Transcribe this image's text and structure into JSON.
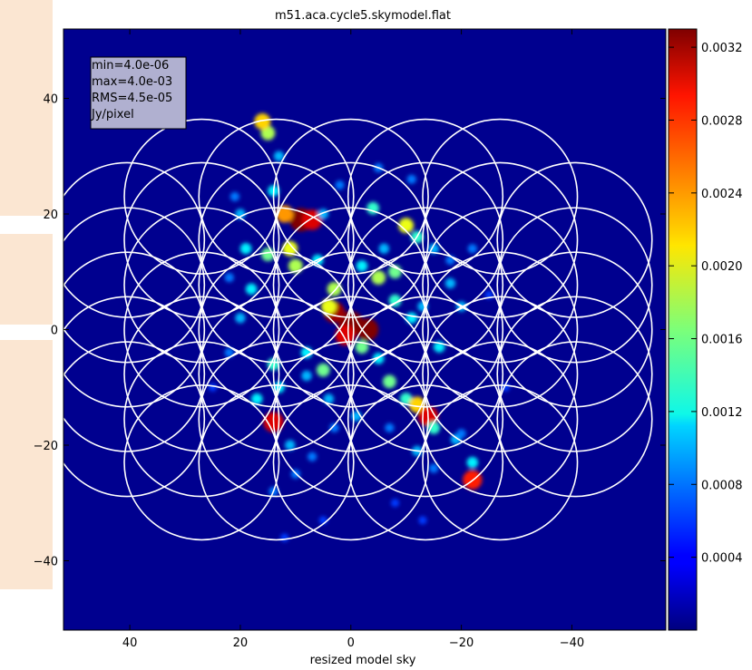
{
  "chart_data": {
    "type": "heatmap",
    "title": "m51.aca.cycle5.skymodel.flat",
    "xlabel": "resized model sky",
    "ylabel": "",
    "xlim": [
      52,
      -57
    ],
    "ylim": [
      -52,
      52
    ],
    "x_ticks": [
      40,
      20,
      0,
      -20,
      -40
    ],
    "x_tick_labels": [
      "40",
      "20",
      "0",
      "−20",
      "−40"
    ],
    "y_ticks": [
      40,
      20,
      0,
      -20,
      -40
    ],
    "y_tick_labels": [
      "40",
      "20",
      "0",
      "−20",
      "−40"
    ],
    "colorbar": {
      "range": [
        0.0,
        0.0033
      ],
      "ticks": [
        0.0032,
        0.0028,
        0.0024,
        0.002,
        0.0016,
        0.0012,
        0.0008,
        0.0004
      ],
      "tick_labels": [
        "0.0032",
        "0.0028",
        "0.0024",
        "0.0020",
        "0.0016",
        "0.0012",
        "0.0008",
        "0.0004"
      ],
      "colormap": "jet"
    },
    "stats_box": {
      "lines": [
        "min=4.0e-06",
        "max=4.0e-03",
        "RMS=4.5e-05",
        "Jy/pixel"
      ],
      "placement": "top-left"
    },
    "pointing_radius": 14,
    "pointings": [
      [
        27,
        23
      ],
      [
        13.5,
        23
      ],
      [
        0,
        23
      ],
      [
        -13.5,
        23
      ],
      [
        -27,
        23
      ],
      [
        40.5,
        15.5
      ],
      [
        27,
        15.5
      ],
      [
        13.5,
        15.5
      ],
      [
        0,
        15.5
      ],
      [
        -13.5,
        15.5
      ],
      [
        -27,
        15.5
      ],
      [
        -40.5,
        15.5
      ],
      [
        40.5,
        7.7
      ],
      [
        27,
        7.7
      ],
      [
        13.5,
        7.7
      ],
      [
        0,
        7.7
      ],
      [
        -13.5,
        7.7
      ],
      [
        -27,
        7.7
      ],
      [
        -40.5,
        7.7
      ],
      [
        40.5,
        0
      ],
      [
        27,
        0
      ],
      [
        13.5,
        0
      ],
      [
        0,
        0
      ],
      [
        -13.5,
        0
      ],
      [
        -27,
        0
      ],
      [
        -40.5,
        0
      ],
      [
        40.5,
        -7.7
      ],
      [
        27,
        -7.7
      ],
      [
        13.5,
        -7.7
      ],
      [
        0,
        -7.7
      ],
      [
        -13.5,
        -7.7
      ],
      [
        -27,
        -7.7
      ],
      [
        -40.5,
        -7.7
      ],
      [
        40.5,
        -15.5
      ],
      [
        27,
        -15.5
      ],
      [
        13.5,
        -15.5
      ],
      [
        0,
        -15.5
      ],
      [
        -13.5,
        -15.5
      ],
      [
        -27,
        -15.5
      ],
      [
        -40.5,
        -15.5
      ],
      [
        27,
        -23
      ],
      [
        13.5,
        -23
      ],
      [
        0,
        -23
      ],
      [
        -13.5,
        -23
      ],
      [
        -27,
        -23
      ]
    ],
    "emission_clumps": [
      [
        0,
        1,
        0.004
      ],
      [
        -3,
        0,
        0.0034
      ],
      [
        3,
        3,
        0.0032
      ],
      [
        1,
        -1,
        0.003
      ],
      [
        9,
        19,
        0.0036
      ],
      [
        7,
        19,
        0.003
      ],
      [
        12,
        20,
        0.0024
      ],
      [
        11,
        14,
        0.002
      ],
      [
        10,
        11,
        0.0018
      ],
      [
        15,
        13,
        0.0016
      ],
      [
        14,
        24,
        0.0012
      ],
      [
        5,
        20,
        0.001
      ],
      [
        -4,
        21,
        0.0014
      ],
      [
        -10,
        18,
        0.002
      ],
      [
        -12,
        16,
        0.0014
      ],
      [
        -15,
        14,
        0.001
      ],
      [
        -8,
        10,
        0.0016
      ],
      [
        -5,
        9,
        0.0018
      ],
      [
        -2,
        11,
        0.0012
      ],
      [
        3,
        7,
        0.0018
      ],
      [
        4,
        4,
        0.002
      ],
      [
        -8,
        5,
        0.0014
      ],
      [
        -11,
        2,
        0.0012
      ],
      [
        -13,
        4,
        0.001
      ],
      [
        -2,
        -3,
        0.0016
      ],
      [
        -5,
        -5,
        0.0012
      ],
      [
        -7,
        -9,
        0.0016
      ],
      [
        -10,
        -12,
        0.0014
      ],
      [
        -12,
        -13,
        0.0022
      ],
      [
        -14,
        -15,
        0.003
      ],
      [
        -15,
        -17,
        0.0014
      ],
      [
        -12,
        -21,
        0.001
      ],
      [
        -15,
        -24,
        0.0008
      ],
      [
        -19,
        -19,
        0.001
      ],
      [
        -22,
        -26,
        0.0028
      ],
      [
        -22,
        -23,
        0.0012
      ],
      [
        -20,
        -18,
        0.0008
      ],
      [
        5,
        -7,
        0.0016
      ],
      [
        8,
        -8,
        0.001
      ],
      [
        13,
        -10,
        0.0012
      ],
      [
        14,
        -16,
        0.003
      ],
      [
        11,
        -20,
        0.001
      ],
      [
        7,
        -22,
        0.0008
      ],
      [
        8,
        -4,
        0.0012
      ],
      [
        14,
        -6,
        0.0014
      ],
      [
        19,
        14,
        0.0012
      ],
      [
        20,
        20,
        0.001
      ],
      [
        21,
        23,
        0.0008
      ],
      [
        15,
        34,
        0.0018
      ],
      [
        16,
        36,
        0.0022
      ],
      [
        13,
        30,
        0.001
      ],
      [
        18,
        7,
        0.0012
      ],
      [
        20,
        2,
        0.001
      ],
      [
        22,
        -4,
        0.0008
      ],
      [
        17,
        -12,
        0.0012
      ],
      [
        -18,
        8,
        0.001
      ],
      [
        -20,
        4,
        0.001
      ],
      [
        -16,
        -3,
        0.0012
      ],
      [
        -18,
        12,
        0.0008
      ],
      [
        -6,
        14,
        0.001
      ],
      [
        6,
        12,
        0.0012
      ],
      [
        4,
        -12,
        0.001
      ],
      [
        -1,
        -15,
        0.001
      ],
      [
        3,
        -17,
        0.0008
      ],
      [
        -7,
        -17,
        0.0008
      ],
      [
        10,
        -25,
        0.0008
      ],
      [
        14,
        -28,
        0.0008
      ],
      [
        -8,
        -30,
        0.0006
      ],
      [
        -13,
        -33,
        0.0006
      ],
      [
        12,
        -36,
        0.0006
      ],
      [
        5,
        -33,
        0.0006
      ],
      [
        -5,
        28,
        0.0008
      ],
      [
        -11,
        26,
        0.0008
      ],
      [
        2,
        25,
        0.0008
      ],
      [
        22,
        9,
        0.0008
      ],
      [
        -22,
        14,
        0.0008
      ],
      [
        25,
        -10,
        0.0006
      ],
      [
        -25,
        6,
        0.0006
      ],
      [
        -28,
        -10,
        0.0006
      ]
    ],
    "grid": false
  }
}
